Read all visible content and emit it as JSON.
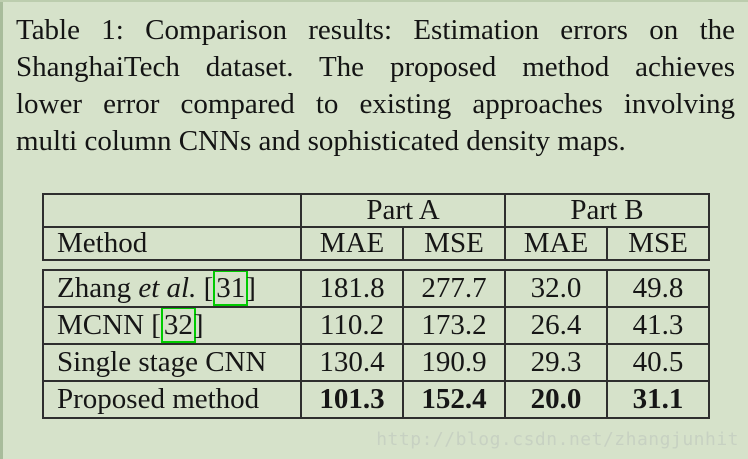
{
  "page": {
    "background_color": "#d6e2ca",
    "text_color": "#161616",
    "cite_box_color": "#00cb00"
  },
  "caption": {
    "lines": [
      "Table 1: Comparison results: Estimation errors on the",
      "ShanghaiTech dataset. The proposed method achieves",
      "lower error compared to existing approaches involving",
      "multi column CNNs and sophisticated density maps."
    ]
  },
  "table": {
    "column_groups": {
      "part_a": "Part A",
      "part_b": "Part B"
    },
    "method_header": "Method",
    "metric_headers": [
      "MAE",
      "MSE",
      "MAE",
      "MSE"
    ],
    "rows": [
      {
        "method_pre": "Zhang ",
        "method_italic": "et al.",
        "method_mid": " [",
        "cite": "31",
        "method_post": "]",
        "values": [
          "181.8",
          "277.7",
          "32.0",
          "49.8"
        ]
      },
      {
        "method_pre": "MCNN [",
        "cite": "32",
        "method_post": "]",
        "values": [
          "110.2",
          "173.2",
          "26.4",
          "41.3"
        ]
      },
      {
        "method_pre": "Single stage CNN",
        "values": [
          "130.4",
          "190.9",
          "29.3",
          "40.5"
        ]
      },
      {
        "method_pre": "Proposed method",
        "values": [
          "101.3",
          "152.4",
          "20.0",
          "31.1"
        ],
        "bold": true
      }
    ]
  },
  "chart_data": {
    "type": "table",
    "title": "Table 1: Comparison results: Estimation errors on the ShanghaiTech dataset.",
    "column_groups": [
      "Part A",
      "Part B"
    ],
    "columns": [
      "Method",
      "Part A MAE",
      "Part A MSE",
      "Part B MAE",
      "Part B MSE"
    ],
    "rows": [
      [
        "Zhang et al. [31]",
        181.8,
        277.7,
        32.0,
        49.8
      ],
      [
        "MCNN [32]",
        110.2,
        173.2,
        26.4,
        41.3
      ],
      [
        "Single stage CNN",
        130.4,
        190.9,
        29.3,
        40.5
      ],
      [
        "Proposed method",
        101.3,
        152.4,
        20.0,
        31.1
      ]
    ],
    "best_row": "Proposed method"
  },
  "watermark": {
    "text": "http://blog.csdn.net/zhangjunhit",
    "color": "#c7d1c2"
  }
}
